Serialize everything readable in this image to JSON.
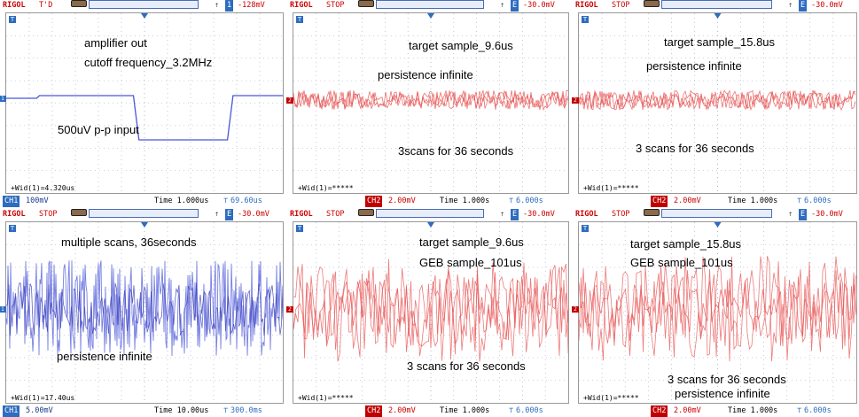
{
  "colors": {
    "ch1": "#4a56d8",
    "ch2": "#e85a5a",
    "accent": "#c00000",
    "grid": "#9aa6c9"
  },
  "panels": [
    {
      "status": {
        "brand": "RIGOL",
        "state": "T'D",
        "trig_icon": "rising-edge-icon",
        "trig_ch": "1",
        "trig_level": "-128mV"
      },
      "notes": [
        "amplifier out",
        "cutoff frequency_3.2MHz",
        "500uV p-p input"
      ],
      "measure": "+Wid(1)=4.320us",
      "ch_label": "CH1",
      "ch_scale": "100mV",
      "time": "Time 1.000us",
      "delay": "69.60us",
      "marker": "1",
      "channel": "ch1"
    },
    {
      "status": {
        "brand": "RIGOL",
        "state": "STOP",
        "trig_icon": "rising-edge-icon",
        "trig_ch": "E",
        "trig_level": "-30.0mV"
      },
      "notes": [
        "target sample_9.6us",
        "persistence infinite",
        "3scans for 36 seconds"
      ],
      "measure": "+Wid(1)=*****",
      "ch_label": "CH2",
      "ch_scale": "2.00mV",
      "time": "Time 1.000s",
      "delay": "6.000s",
      "marker": "2",
      "channel": "ch2"
    },
    {
      "status": {
        "brand": "RIGOL",
        "state": "STOP",
        "trig_icon": "rising-edge-icon",
        "trig_ch": "E",
        "trig_level": "-30.0mV"
      },
      "notes": [
        "target sample_15.8us",
        "persistence infinite",
        "3 scans for 36 seconds"
      ],
      "measure": "+Wid(1)=*****",
      "ch_label": "CH2",
      "ch_scale": "2.00mV",
      "time": "Time 1.000s",
      "delay": "6.000s",
      "marker": "2",
      "channel": "ch2"
    },
    {
      "status": {
        "brand": "RIGOL",
        "state": "STOP",
        "trig_icon": "rising-edge-icon",
        "trig_ch": "E",
        "trig_level": "-30.0mV"
      },
      "notes": [
        "multiple scans, 36seconds",
        "persistence infinite"
      ],
      "measure": "+Wid(1)=17.40us",
      "ch_label": "CH1",
      "ch_scale": "5.00mV",
      "time": "Time 10.00us",
      "delay": "300.0ms",
      "marker": "1",
      "channel": "ch1"
    },
    {
      "status": {
        "brand": "RIGOL",
        "state": "STOP",
        "trig_icon": "rising-edge-icon",
        "trig_ch": "E",
        "trig_level": "-30.0mV"
      },
      "notes": [
        "target sample_9.6us",
        "GEB sample_101us",
        "3 scans for 36 seconds"
      ],
      "measure": "+Wid(1)=*****",
      "ch_label": "CH2",
      "ch_scale": "2.00mV",
      "time": "Time 1.000s",
      "delay": "6.000s",
      "marker": "2",
      "channel": "ch2"
    },
    {
      "status": {
        "brand": "RIGOL",
        "state": "STOP",
        "trig_icon": "rising-edge-icon",
        "trig_ch": "E",
        "trig_level": "-30.0mV"
      },
      "notes": [
        "target sample_15.8us",
        "GEB sample_101us",
        "3 scans for 36 seconds",
        "persistence infinite"
      ],
      "measure": "+Wid(1)=*****",
      "ch_label": "CH2",
      "ch_scale": "2.00mV",
      "time": "Time 1.000s",
      "delay": "6.000s",
      "marker": "2",
      "channel": "ch2"
    }
  ]
}
